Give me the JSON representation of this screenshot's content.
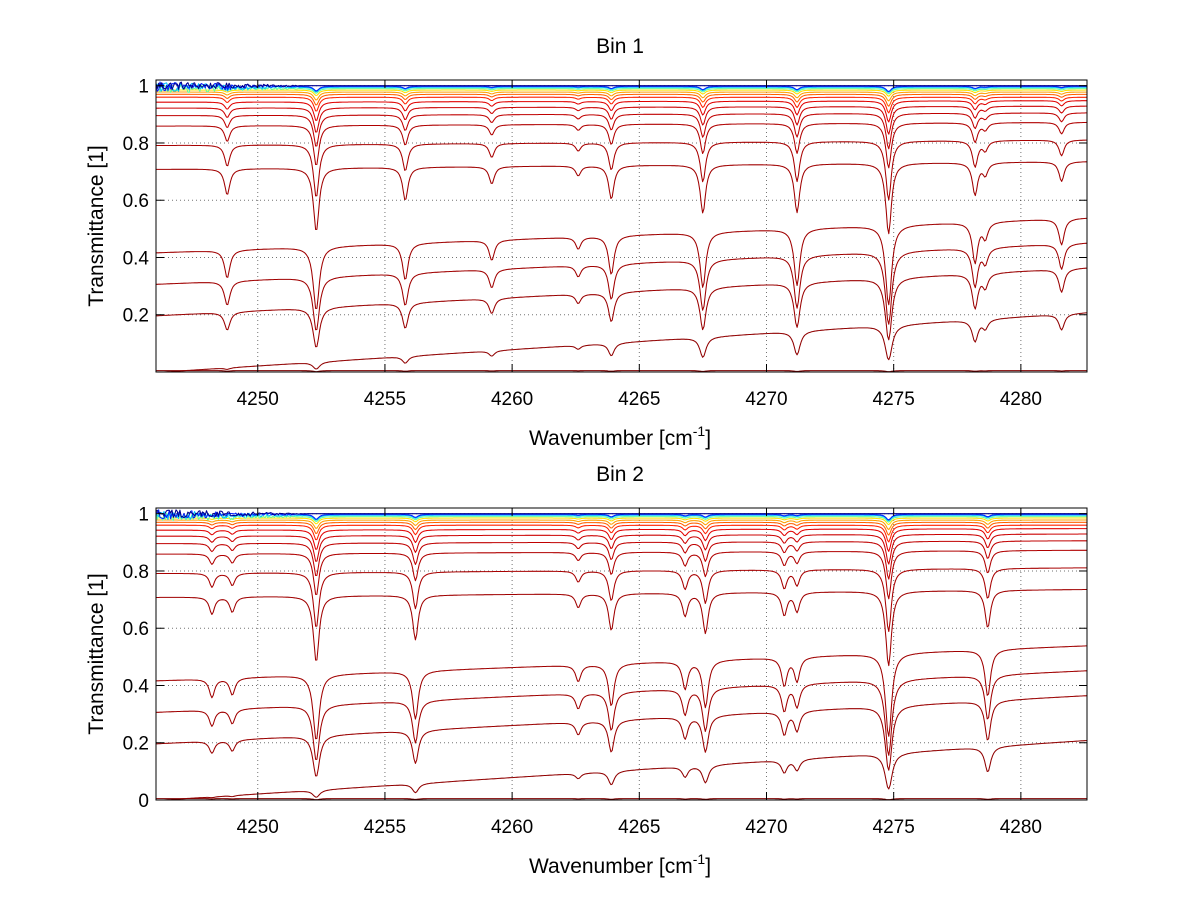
{
  "colors": {
    "background": "#ffffff",
    "axes": "#000000"
  },
  "chart_data": [
    {
      "type": "line",
      "title": "Bin 1",
      "xlabel": "Wavenumber [cm",
      "xlabel_sup": "-1",
      "xlabel_close": "]",
      "ylabel": "Transmittance [1]",
      "xlim": [
        4246,
        4282.6
      ],
      "ylim": [
        0,
        1.02
      ],
      "grid": true,
      "xticks": [
        4250,
        4255,
        4260,
        4265,
        4270,
        4275,
        4280
      ],
      "xtick_labels": [
        "4250",
        "4255",
        "4260",
        "4265",
        "4270",
        "4275",
        "4280"
      ],
      "yticks": [
        0.2,
        0.4,
        0.6,
        0.8,
        1
      ],
      "ytick_labels": [
        "0.2",
        "0.4",
        "0.6",
        "0.8",
        "1"
      ],
      "series_baselines": [
        1.0,
        0.998,
        0.995,
        0.99,
        0.985,
        0.978,
        0.97,
        0.96,
        0.945,
        0.925,
        0.9,
        0.865,
        0.8,
        0.72,
        0.47,
        0.37,
        0.27,
        0.09,
        0.005
      ],
      "series_colors": [
        "#00008f",
        "#0020ff",
        "#00c0ff",
        "#60ff9f",
        "#ffdf00",
        "#ff9f00",
        "#ff6000",
        "#ff2000",
        "#e00000",
        "#cc0000",
        "#c00000",
        "#b00000",
        "#a80000",
        "#a00000",
        "#a00000",
        "#a00000",
        "#9a0000",
        "#900000",
        "#800000"
      ],
      "absorption_lines": [
        {
          "center": 4248.8,
          "depth": 0.14
        },
        {
          "center": 4252.3,
          "depth": 0.38
        },
        {
          "center": 4255.8,
          "depth": 0.18
        },
        {
          "center": 4259.2,
          "depth": 0.09
        },
        {
          "center": 4262.6,
          "depth": 0.05
        },
        {
          "center": 4263.9,
          "depth": 0.18
        },
        {
          "center": 4267.5,
          "depth": 0.27
        },
        {
          "center": 4271.2,
          "depth": 0.27
        },
        {
          "center": 4274.8,
          "depth": 0.42
        },
        {
          "center": 4278.2,
          "depth": 0.17
        },
        {
          "center": 4278.6,
          "depth": 0.06
        },
        {
          "center": 4281.6,
          "depth": 0.1
        }
      ]
    },
    {
      "type": "line",
      "title": "Bin 2",
      "xlabel": "Wavenumber [cm",
      "xlabel_sup": "-1",
      "xlabel_close": "]",
      "ylabel": "Transmittance [1]",
      "xlim": [
        4246,
        4282.6
      ],
      "ylim": [
        0,
        1.02
      ],
      "grid": true,
      "xticks": [
        4250,
        4255,
        4260,
        4265,
        4270,
        4275,
        4280
      ],
      "xtick_labels": [
        "4250",
        "4255",
        "4260",
        "4265",
        "4270",
        "4275",
        "4280"
      ],
      "yticks": [
        0,
        0.2,
        0.4,
        0.6,
        0.8,
        1
      ],
      "ytick_labels": [
        "0",
        "0.2",
        "0.4",
        "0.6",
        "0.8",
        "1"
      ],
      "series_baselines": [
        1.0,
        0.998,
        0.995,
        0.99,
        0.985,
        0.978,
        0.97,
        0.96,
        0.945,
        0.925,
        0.9,
        0.865,
        0.8,
        0.72,
        0.47,
        0.37,
        0.27,
        0.09,
        0.005
      ],
      "series_colors": [
        "#00008f",
        "#0020ff",
        "#00c0ff",
        "#60ff9f",
        "#ffdf00",
        "#ff9f00",
        "#ff6000",
        "#ff2000",
        "#e00000",
        "#cc0000",
        "#c00000",
        "#b00000",
        "#a80000",
        "#a00000",
        "#a00000",
        "#a00000",
        "#9a0000",
        "#900000",
        "#800000"
      ],
      "absorption_lines": [
        {
          "center": 4248.2,
          "depth": 0.09
        },
        {
          "center": 4249.0,
          "depth": 0.08
        },
        {
          "center": 4252.3,
          "depth": 0.4
        },
        {
          "center": 4256.2,
          "depth": 0.25
        },
        {
          "center": 4262.6,
          "depth": 0.07
        },
        {
          "center": 4263.9,
          "depth": 0.2
        },
        {
          "center": 4266.8,
          "depth": 0.12
        },
        {
          "center": 4267.6,
          "depth": 0.22
        },
        {
          "center": 4270.7,
          "depth": 0.12
        },
        {
          "center": 4271.2,
          "depth": 0.1
        },
        {
          "center": 4274.8,
          "depth": 0.45
        },
        {
          "center": 4278.7,
          "depth": 0.2
        }
      ]
    }
  ]
}
